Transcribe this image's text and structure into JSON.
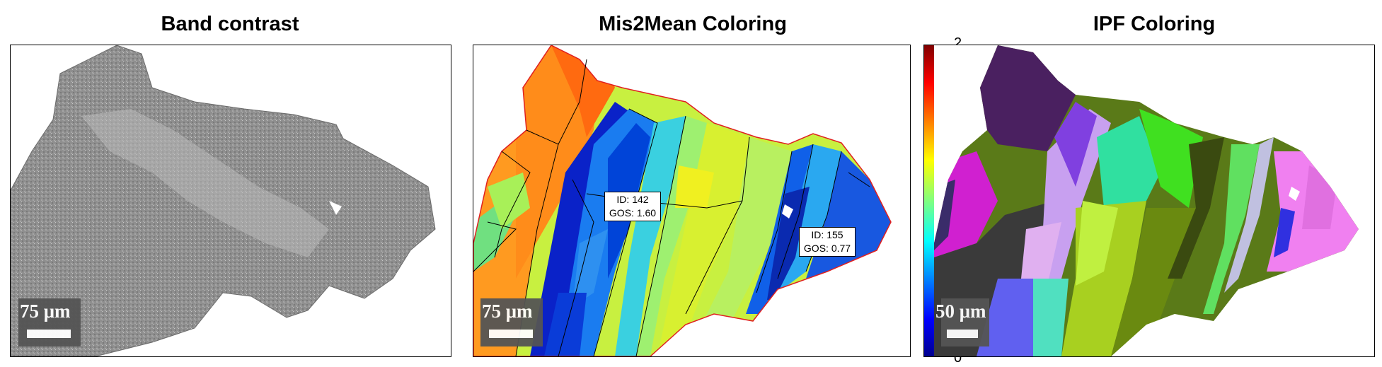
{
  "panels": {
    "band_contrast": {
      "title": "Band contrast",
      "scalebar": "75 μm"
    },
    "mis2mean": {
      "title": "Mis2Mean Coloring",
      "scalebar": "75 μm",
      "labels": [
        {
          "id": "ID: 142",
          "gos": "GOS: 1.60"
        },
        {
          "id": "ID: 155",
          "gos": "GOS: 0.77"
        }
      ]
    },
    "ipf": {
      "title": "IPF Coloring",
      "scalebar": "50 μm"
    }
  },
  "colorbar": {
    "max_label": "2",
    "min_label": "0",
    "colormap": "jet"
  }
}
